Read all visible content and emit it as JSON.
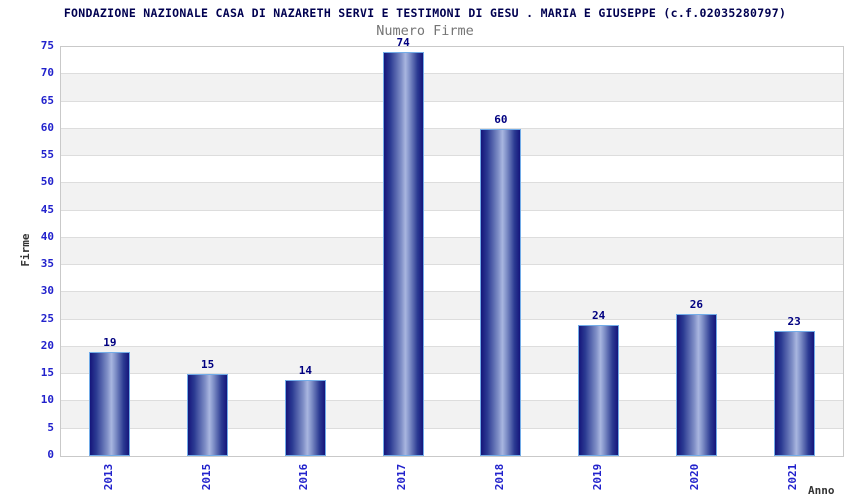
{
  "chart_data": {
    "type": "bar",
    "title": "FONDAZIONE NAZIONALE CASA DI NAZARETH SERVI E TESTIMONI DI GESU . MARIA E GIUSEPPE (c.f.02035280797)",
    "subtitle": "Numero Firme",
    "xlabel": "Anno",
    "ylabel": "Firme",
    "categories": [
      "2013",
      "2015",
      "2016",
      "2017",
      "2018",
      "2019",
      "2020",
      "2021"
    ],
    "values": [
      19,
      15,
      14,
      74,
      60,
      24,
      26,
      23
    ],
    "ylim": [
      0,
      75
    ],
    "ytick_step": 5,
    "grid": true,
    "legend_position": "none",
    "band_fill_alternating": true,
    "colors": {
      "title": "#000050",
      "subtitle": "#757575",
      "tick_label": "#2222cc",
      "value_label": "#000080",
      "axis_title": "#333333",
      "bar_dark": "#15157b",
      "bar_light": "#a9b6e0",
      "bar_border": "#72ace8",
      "band": "#f2f2f2",
      "gridline": "#dddddd",
      "plot_border": "#c9c9c9",
      "background": "#ffffff"
    }
  }
}
